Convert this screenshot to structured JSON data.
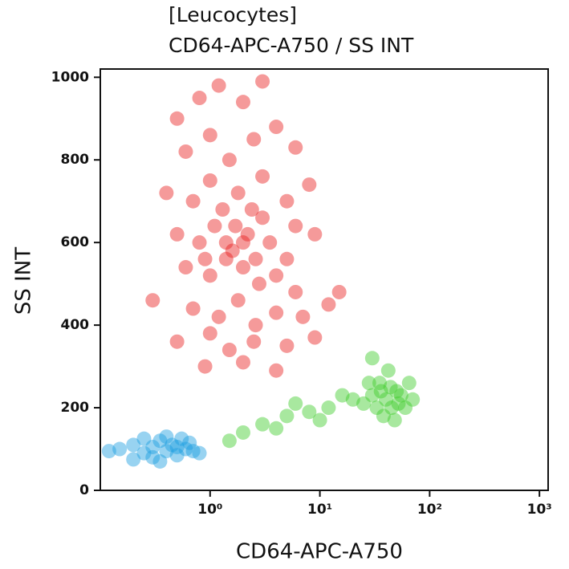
{
  "chart_data": {
    "type": "scatter",
    "title": [
      "[Leucocytes]",
      "CD64-APC-A750 / SS INT"
    ],
    "x_label": "CD64-APC-A750",
    "y_label": "SS INT",
    "xscale": "log",
    "xlim": [
      0.1,
      1200
    ],
    "ylim": [
      0,
      1020
    ],
    "xticks": [
      {
        "value": 1,
        "label": "10⁰"
      },
      {
        "value": 10,
        "label": "10¹"
      },
      {
        "value": 100,
        "label": "10²"
      },
      {
        "value": 1000,
        "label": "10³"
      }
    ],
    "yticks": [
      0,
      200,
      400,
      600,
      800,
      1000
    ],
    "series": [
      {
        "color": "#e8201e",
        "x": [
          0.5,
          0.8,
          1.2,
          2,
          3,
          0.6,
          1,
          1.5,
          2.5,
          4,
          6,
          0.4,
          0.7,
          1,
          1.8,
          3,
          5,
          8,
          0.5,
          0.8,
          1.1,
          1.6,
          2.2,
          3.5,
          5,
          9,
          0.6,
          1,
          1.4,
          2,
          2.8,
          4,
          6,
          0.3,
          0.7,
          1.2,
          1.8,
          2.6,
          4,
          7,
          12,
          0.5,
          1,
          1.5,
          2.5,
          5,
          9,
          0.9,
          2,
          4,
          1.3,
          2.4,
          0.9,
          1.7,
          3,
          2,
          1.4,
          2.6,
          6,
          15
        ],
        "y": [
          900,
          950,
          980,
          940,
          990,
          820,
          860,
          800,
          850,
          880,
          830,
          720,
          700,
          750,
          720,
          760,
          700,
          740,
          620,
          600,
          640,
          580,
          620,
          600,
          560,
          620,
          540,
          520,
          560,
          540,
          500,
          520,
          480,
          460,
          440,
          420,
          460,
          400,
          430,
          420,
          450,
          360,
          380,
          340,
          360,
          350,
          370,
          300,
          310,
          290,
          680,
          680,
          560,
          640,
          660,
          600,
          600,
          560,
          640,
          480
        ]
      },
      {
        "color": "#3fcc2a",
        "x": [
          30,
          40,
          35,
          45,
          50,
          25,
          38,
          55,
          42,
          60,
          28,
          33,
          48,
          65,
          20,
          36,
          44,
          52,
          2,
          3,
          5,
          8,
          12,
          1.5,
          4,
          10,
          16,
          6,
          70,
          30
        ],
        "y": [
          230,
          220,
          260,
          200,
          240,
          210,
          180,
          230,
          290,
          200,
          260,
          200,
          170,
          260,
          220,
          240,
          250,
          210,
          140,
          160,
          180,
          190,
          200,
          120,
          150,
          170,
          230,
          210,
          220,
          320
        ]
      },
      {
        "color": "#1a9ee0",
        "x": [
          0.15,
          0.2,
          0.25,
          0.3,
          0.35,
          0.4,
          0.45,
          0.5,
          0.6,
          0.7,
          0.2,
          0.3,
          0.4,
          0.55,
          0.25,
          0.35,
          0.65,
          0.8,
          0.12,
          0.5
        ],
        "y": [
          100,
          110,
          90,
          105,
          120,
          95,
          110,
          85,
          100,
          95,
          75,
          80,
          130,
          125,
          125,
          70,
          115,
          90,
          95,
          105
        ]
      }
    ]
  }
}
